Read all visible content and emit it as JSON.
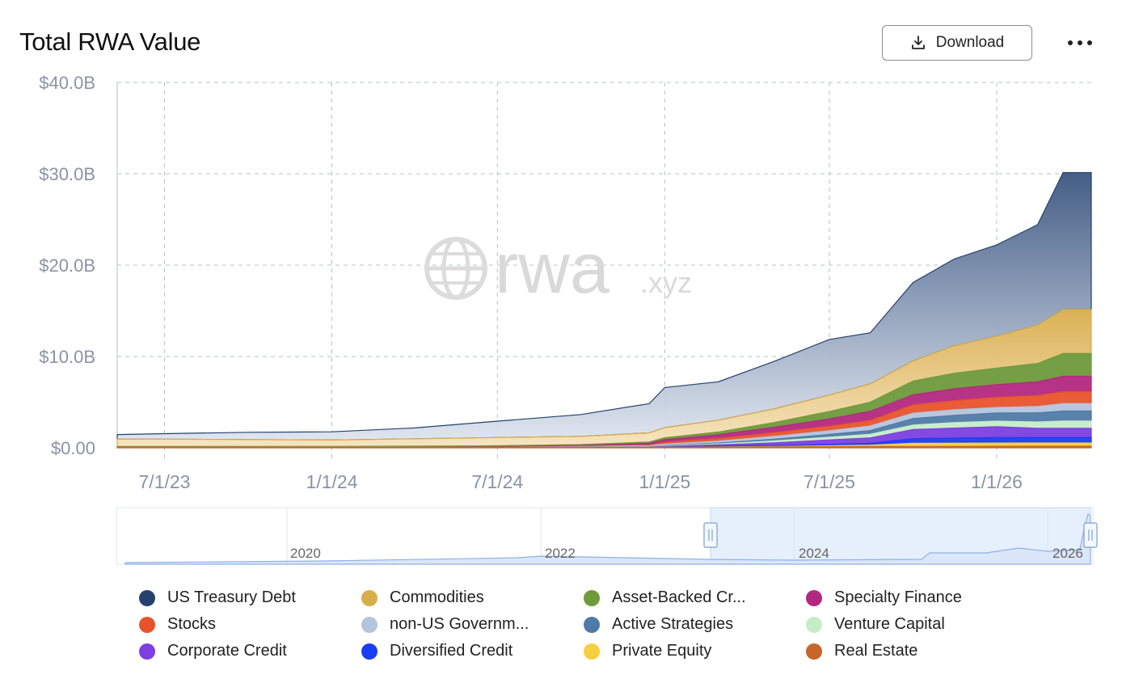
{
  "header": {
    "title": "Total RWA Value",
    "download_label": "Download"
  },
  "watermark": {
    "brand": "rwa",
    "suffix": ".xyz"
  },
  "chart_data": {
    "type": "area",
    "title": "Total RWA Value",
    "stacked": true,
    "y_unit": "$B",
    "ylim": [
      0,
      40
    ],
    "y_ticks": [
      {
        "value": 40,
        "label": "$40.0B"
      },
      {
        "value": 30,
        "label": "$30.0B"
      },
      {
        "value": 20,
        "label": "$20.0B"
      },
      {
        "value": 10,
        "label": "$10.0B"
      },
      {
        "value": 0,
        "label": "$0.00"
      }
    ],
    "x_range": [
      "2023-05-10",
      "2026-04-15"
    ],
    "x_ticks": [
      {
        "date": "2023-07-01",
        "label": "7/1/23"
      },
      {
        "date": "2024-01-01",
        "label": "1/1/24"
      },
      {
        "date": "2024-07-01",
        "label": "7/1/24"
      },
      {
        "date": "2025-01-01",
        "label": "1/1/25"
      },
      {
        "date": "2025-07-01",
        "label": "7/1/25"
      },
      {
        "date": "2026-01-01",
        "label": "1/1/26"
      }
    ],
    "grid": true,
    "legend_position": "bottom",
    "x": [
      "2023-05-10",
      "2023-07-01",
      "2023-10-01",
      "2024-01-01",
      "2024-04-01",
      "2024-07-01",
      "2024-10-01",
      "2024-12-15",
      "2025-01-01",
      "2025-03-01",
      "2025-05-01",
      "2025-07-01",
      "2025-08-15",
      "2025-10-01",
      "2025-11-15",
      "2026-01-01",
      "2026-02-15",
      "2026-03-15",
      "2026-04-15"
    ],
    "series": [
      {
        "name": "Real Estate",
        "color": "#c8652a",
        "values": [
          0.05,
          0.05,
          0.05,
          0.05,
          0.05,
          0.05,
          0.05,
          0.05,
          0.05,
          0.08,
          0.1,
          0.12,
          0.14,
          0.15,
          0.16,
          0.17,
          0.18,
          0.18,
          0.18
        ]
      },
      {
        "name": "Private Equity",
        "color": "#f4d03f",
        "values": [
          0,
          0,
          0,
          0,
          0,
          0,
          0,
          0,
          0,
          0.02,
          0.05,
          0.1,
          0.15,
          0.35,
          0.35,
          0.35,
          0.35,
          0.35,
          0.35
        ]
      },
      {
        "name": "Diversified Credit",
        "color": "#1a3cf0",
        "values": [
          0,
          0,
          0,
          0,
          0,
          0,
          0.01,
          0.02,
          0.05,
          0.08,
          0.1,
          0.15,
          0.2,
          0.5,
          0.55,
          0.6,
          0.6,
          0.6,
          0.6
        ]
      },
      {
        "name": "Corporate Credit",
        "color": "#7c3fe0",
        "values": [
          0,
          0,
          0,
          0,
          0,
          0,
          0.01,
          0.03,
          0.05,
          0.15,
          0.3,
          0.5,
          0.6,
          1.0,
          1.1,
          1.2,
          1.0,
          1.0,
          1.0
        ]
      },
      {
        "name": "Venture Capital",
        "color": "#c6ecc6",
        "values": [
          0,
          0,
          0,
          0,
          0,
          0,
          0.01,
          0.02,
          0.05,
          0.1,
          0.2,
          0.3,
          0.4,
          0.5,
          0.6,
          0.6,
          0.7,
          0.8,
          0.8
        ]
      },
      {
        "name": "Active Strategies",
        "color": "#4f7aa8",
        "values": [
          0,
          0,
          0,
          0,
          0,
          0,
          0.01,
          0.02,
          0.05,
          0.1,
          0.2,
          0.3,
          0.4,
          0.7,
          0.8,
          0.9,
          1.0,
          1.1,
          1.1
        ]
      },
      {
        "name": "non-US Government Debt",
        "color": "#b4c4dc",
        "values": [
          0,
          0,
          0,
          0,
          0.01,
          0.02,
          0.05,
          0.1,
          0.15,
          0.2,
          0.3,
          0.4,
          0.5,
          0.6,
          0.6,
          0.6,
          0.7,
          0.8,
          0.8
        ]
      },
      {
        "name": "Stocks",
        "color": "#e8532c",
        "values": [
          0,
          0,
          0,
          0,
          0,
          0,
          0.01,
          0.05,
          0.2,
          0.3,
          0.4,
          0.5,
          0.6,
          0.9,
          1.0,
          1.1,
          1.2,
          1.3,
          1.3
        ]
      },
      {
        "name": "Specialty Finance",
        "color": "#b3287f",
        "values": [
          0,
          0,
          0,
          0,
          0.02,
          0.05,
          0.1,
          0.2,
          0.3,
          0.4,
          0.6,
          0.8,
          1.0,
          1.1,
          1.3,
          1.4,
          1.5,
          1.7,
          1.7
        ]
      },
      {
        "name": "Asset-Backed Credit",
        "color": "#6e9a3a",
        "values": [
          0.1,
          0.1,
          0.1,
          0.1,
          0.1,
          0.1,
          0.1,
          0.15,
          0.2,
          0.3,
          0.5,
          0.8,
          1.0,
          1.5,
          1.7,
          1.8,
          2.0,
          2.5,
          2.5
        ]
      },
      {
        "name": "Commodities",
        "color": "#d8ad4c",
        "values": [
          0.8,
          0.8,
          0.75,
          0.7,
          0.8,
          0.9,
          0.9,
          1.0,
          1.1,
          1.3,
          1.5,
          1.8,
          2.0,
          2.2,
          3.0,
          3.5,
          4.2,
          4.8,
          4.8
        ]
      },
      {
        "name": "US Treasury Debt",
        "color": "#27416e",
        "values": [
          0.5,
          0.6,
          0.8,
          0.9,
          1.2,
          1.8,
          2.4,
          3.2,
          4.4,
          4.2,
          5.2,
          6.1,
          5.6,
          8.6,
          9.5,
          10.0,
          11.0,
          15.0,
          15.0
        ]
      }
    ]
  },
  "navigator": {
    "year_labels": [
      "2020",
      "2022",
      "2024",
      "2026"
    ]
  },
  "legend": [
    {
      "label": "US Treasury Debt",
      "color": "#27416e"
    },
    {
      "label": "Commodities",
      "color": "#d8ad4c"
    },
    {
      "label": "Asset-Backed Cr...",
      "color": "#6e9a3a"
    },
    {
      "label": "Specialty Finance",
      "color": "#b3287f"
    },
    {
      "label": "Stocks",
      "color": "#e8532c"
    },
    {
      "label": "non-US Governm...",
      "color": "#b4c4dc"
    },
    {
      "label": "Active Strategies",
      "color": "#4f7aa8"
    },
    {
      "label": "Venture Capital",
      "color": "#c6ecc6"
    },
    {
      "label": "Corporate Credit",
      "color": "#7c3fe0"
    },
    {
      "label": "Diversified Credit",
      "color": "#1a3cf0"
    },
    {
      "label": "Private Equity",
      "color": "#f4d03f"
    },
    {
      "label": "Real Estate",
      "color": "#c8652a"
    }
  ]
}
